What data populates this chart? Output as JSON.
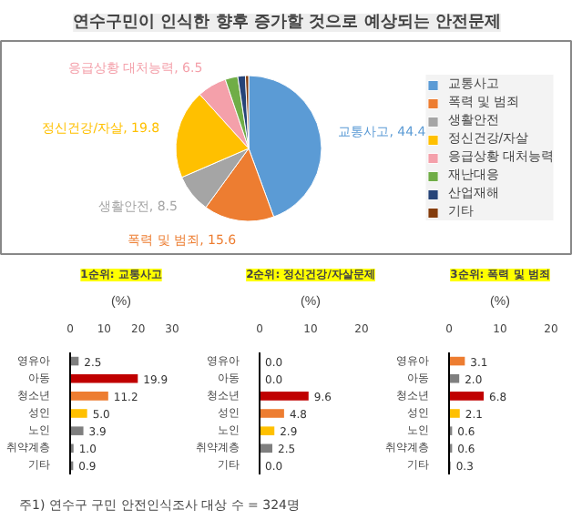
{
  "chart_data": [
    {
      "type": "pie",
      "title": "연수구민이 인식한 향후 증가할 것으로 예상되는 안전문제",
      "legend": "right",
      "categories": [
        "교통사고",
        "폭력 및 범죄",
        "생활안전",
        "정신건강/자살",
        "응급상황 대처능력",
        "재난대응",
        "산업재해",
        "기타"
      ],
      "values": [
        44.4,
        15.6,
        8.5,
        19.8,
        6.5,
        2.8,
        1.7,
        0.7
      ],
      "colors": [
        "#5b9bd5",
        "#ed7d31",
        "#a5a5a5",
        "#ffc000",
        "#f4a0aa",
        "#70ad47",
        "#264478",
        "#843c0c"
      ],
      "value_labels": [
        "교통사고, 44.4",
        "폭력 및 범죄, 15.6",
        "생활안전, 8.5",
        "정신건강/자살, 19.8",
        "응급상황 대처능력, 6.5",
        null,
        null,
        null
      ]
    },
    {
      "type": "bar",
      "orientation": "horizontal",
      "title": "1순위: 교통사고",
      "xlabel": "(%)",
      "categories": [
        "영유아",
        "아동",
        "청소년",
        "성인",
        "노인",
        "취약계층",
        "기타"
      ],
      "values": [
        2.5,
        19.9,
        11.2,
        5.0,
        3.9,
        1.0,
        0.9
      ],
      "colors": [
        "#7f7f7f",
        "#c00000",
        "#ed7d31",
        "#ffc000",
        "#7f7f7f",
        "#7f7f7f",
        "#7f7f7f"
      ],
      "value_labels": [
        "2.5",
        "19.9",
        "11.2",
        "5.0",
        "3.9",
        "1.0",
        "0.9"
      ],
      "xlim": [
        0,
        30
      ],
      "xticks": [
        0,
        10,
        20,
        30
      ]
    },
    {
      "type": "bar",
      "orientation": "horizontal",
      "title": "2순위: 정신건강/자살문제",
      "xlabel": "(%)",
      "categories": [
        "영유아",
        "아동",
        "청소년",
        "성인",
        "노인",
        "취약계층",
        "기타"
      ],
      "values": [
        0.0,
        0.0,
        9.6,
        4.8,
        2.9,
        2.5,
        0.0
      ],
      "colors": [
        "#7f7f7f",
        "#7f7f7f",
        "#c00000",
        "#ed7d31",
        "#ffc000",
        "#7f7f7f",
        "#7f7f7f"
      ],
      "value_labels": [
        "0.0",
        "0.0",
        "9.6",
        "4.8",
        "2.9",
        "2.5",
        "0.0"
      ],
      "xlim": [
        0,
        20
      ],
      "xticks": [
        0,
        10,
        20
      ]
    },
    {
      "type": "bar",
      "orientation": "horizontal",
      "title": "3순위: 폭력 및 범죄",
      "xlabel": "(%)",
      "categories": [
        "영유아",
        "아동",
        "청소년",
        "성인",
        "노인",
        "취약계층",
        "기타"
      ],
      "values": [
        3.1,
        2.0,
        6.8,
        2.1,
        0.6,
        0.6,
        0.3
      ],
      "colors": [
        "#ed7d31",
        "#7f7f7f",
        "#c00000",
        "#ffc000",
        "#7f7f7f",
        "#7f7f7f",
        "#7f7f7f"
      ],
      "value_labels": [
        "3.1",
        "2.0",
        "6.8",
        "2.1",
        "0.6",
        "0.6",
        "0.3"
      ],
      "xlim": [
        0,
        20
      ],
      "xticks": [
        0,
        10,
        20
      ],
      "annotations": [
        "주1) 연수구 구민 안전인식조사 대상 수 = 324명"
      ]
    }
  ]
}
